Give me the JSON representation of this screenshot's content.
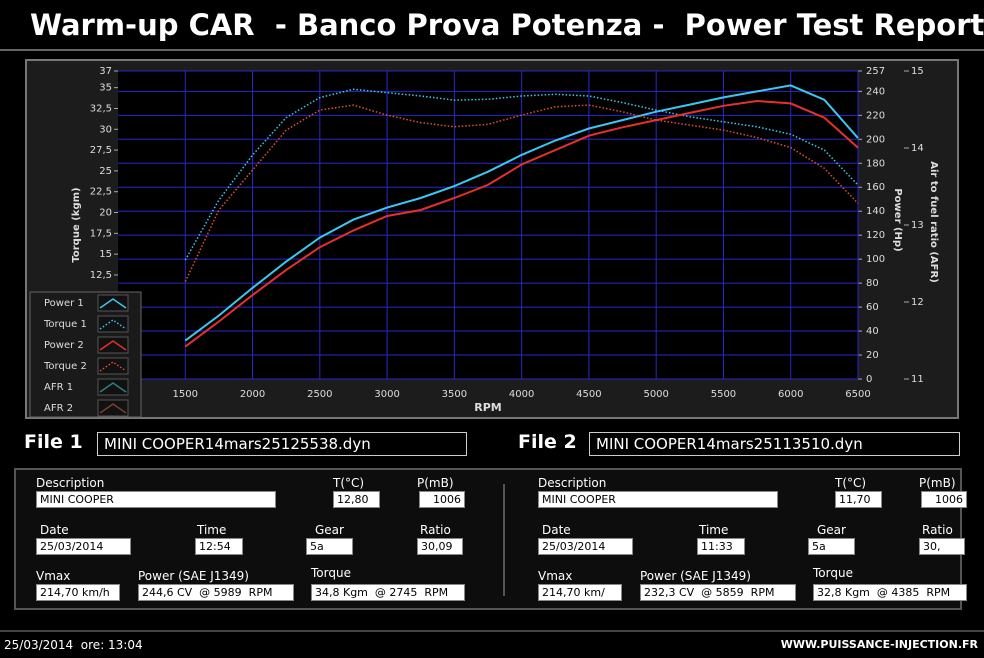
{
  "header": {
    "title": "Warm-up CAR  - Banco Prova Potenza -  Power Test Report"
  },
  "chart_data": {
    "type": "line",
    "x_label": "RPM",
    "y_label": "Torque (kgm)",
    "y2_label": "Power (Hp)",
    "y3_label": "Air to fuel ratio (AFR)",
    "x": [
      1500,
      1750,
      2000,
      2250,
      2500,
      2750,
      3000,
      3250,
      3500,
      3750,
      4000,
      4250,
      4500,
      4750,
      5000,
      5250,
      5500,
      5750,
      6000,
      6250,
      6500
    ],
    "xlim": [
      1000,
      6500
    ],
    "xticks": [
      1500,
      2000,
      2500,
      3000,
      3500,
      4000,
      4500,
      5000,
      5500,
      6000,
      6500
    ],
    "ylim": [
      0,
      37
    ],
    "yticks": [
      {
        "value": 12.5,
        "label": "12,5"
      },
      15,
      {
        "value": 17.5,
        "label": "17,5"
      },
      20,
      {
        "value": 22.5,
        "label": "22,5"
      },
      25,
      {
        "value": 27.5,
        "label": "27,5"
      },
      30,
      {
        "value": 32.5,
        "label": "32,5"
      },
      35,
      37
    ],
    "y2lim": [
      0,
      257
    ],
    "y2ticks": [
      0,
      20,
      40,
      60,
      80,
      100,
      120,
      140,
      160,
      180,
      200,
      220,
      240,
      257
    ],
    "y3lim": [
      11,
      15
    ],
    "y3ticks": [
      11,
      12,
      13,
      14,
      15
    ],
    "grid": true,
    "legend": "bottom-left",
    "series": [
      {
        "name": "Power 1",
        "color": "#3ec6f2",
        "style": "solid",
        "axis": "y2",
        "values": [
          32,
          53,
          76,
          98,
          118,
          133,
          143,
          151,
          161,
          173,
          187,
          199,
          209,
          216,
          223,
          229,
          235,
          240,
          245,
          233,
          201
        ]
      },
      {
        "name": "Torque 1",
        "color": "#3ec6f2",
        "style": "dotted",
        "axis": "y",
        "values": [
          14.3,
          21.5,
          26.9,
          31.4,
          33.8,
          34.8,
          34.4,
          34.0,
          33.5,
          33.6,
          34.0,
          34.2,
          34.0,
          33.2,
          32.3,
          31.5,
          30.9,
          30.3,
          29.4,
          27.5,
          23.3
        ]
      },
      {
        "name": "Power 2",
        "color": "#e8302a",
        "style": "solid",
        "axis": "y2",
        "values": [
          27,
          48,
          70,
          91,
          110,
          124,
          136,
          141,
          151,
          162,
          179,
          191,
          203,
          210,
          216,
          222,
          228,
          232,
          230,
          218,
          193
        ]
      },
      {
        "name": "Torque 2",
        "color": "#e0522a",
        "style": "dotted",
        "axis": "y",
        "values": [
          11.7,
          20.3,
          25.1,
          29.9,
          32.3,
          32.9,
          31.7,
          30.8,
          30.3,
          30.6,
          31.7,
          32.7,
          32.9,
          32.1,
          31.1,
          30.5,
          29.9,
          29.0,
          27.8,
          25.3,
          21.1
        ]
      },
      {
        "name": "AFR 1",
        "color": "#2f7f86",
        "style": "solid",
        "axis": "y3"
      },
      {
        "name": "AFR 2",
        "color": "#7a4030",
        "style": "solid",
        "axis": "y3"
      }
    ]
  },
  "files": [
    {
      "label": "File 1",
      "filename": "MINI COOPER14mars25125538.dyn",
      "fields": [
        {
          "label": "Description",
          "value": "MINI COOPER"
        },
        {
          "label": "T(°C)",
          "value": "12,80"
        },
        {
          "label": "P(mB)",
          "value": "1006"
        },
        {
          "label": "Date",
          "value": "25/03/2014"
        },
        {
          "label": "Time",
          "value": "12:54"
        },
        {
          "label": "Gear",
          "value": "5a"
        },
        {
          "label": "Ratio",
          "value": "30,09"
        },
        {
          "label": "Vmax",
          "value": "214,70 km/h"
        },
        {
          "label": "Power (SAE J1349)",
          "value": "244,6 CV  @ 5989  RPM"
        },
        {
          "label": "Torque",
          "value": "34,8 Kgm  @ 2745  RPM"
        }
      ]
    },
    {
      "label": "File 2",
      "filename": "MINI COOPER14mars25113510.dyn",
      "fields": [
        {
          "label": "Description",
          "value": "MINI COOPER"
        },
        {
          "label": "T(°C)",
          "value": "11,70"
        },
        {
          "label": "P(mB)",
          "value": "1006"
        },
        {
          "label": "Date",
          "value": "25/03/2014"
        },
        {
          "label": "Time",
          "value": "11:33"
        },
        {
          "label": "Gear",
          "value": "5a"
        },
        {
          "label": "Ratio",
          "value": "30,"
        },
        {
          "label": "Vmax",
          "value": "214,70 km/"
        },
        {
          "label": "Power (SAE J1349)",
          "value": "232,3 CV  @ 5859  RPM"
        },
        {
          "label": "Torque",
          "value": "32,8 Kgm  @ 4385  RPM"
        }
      ]
    }
  ],
  "footer": {
    "timestamp": "25/03/2014  ore: 13:04",
    "website": "WWW.PUISSANCE-INJECTION.FR"
  }
}
